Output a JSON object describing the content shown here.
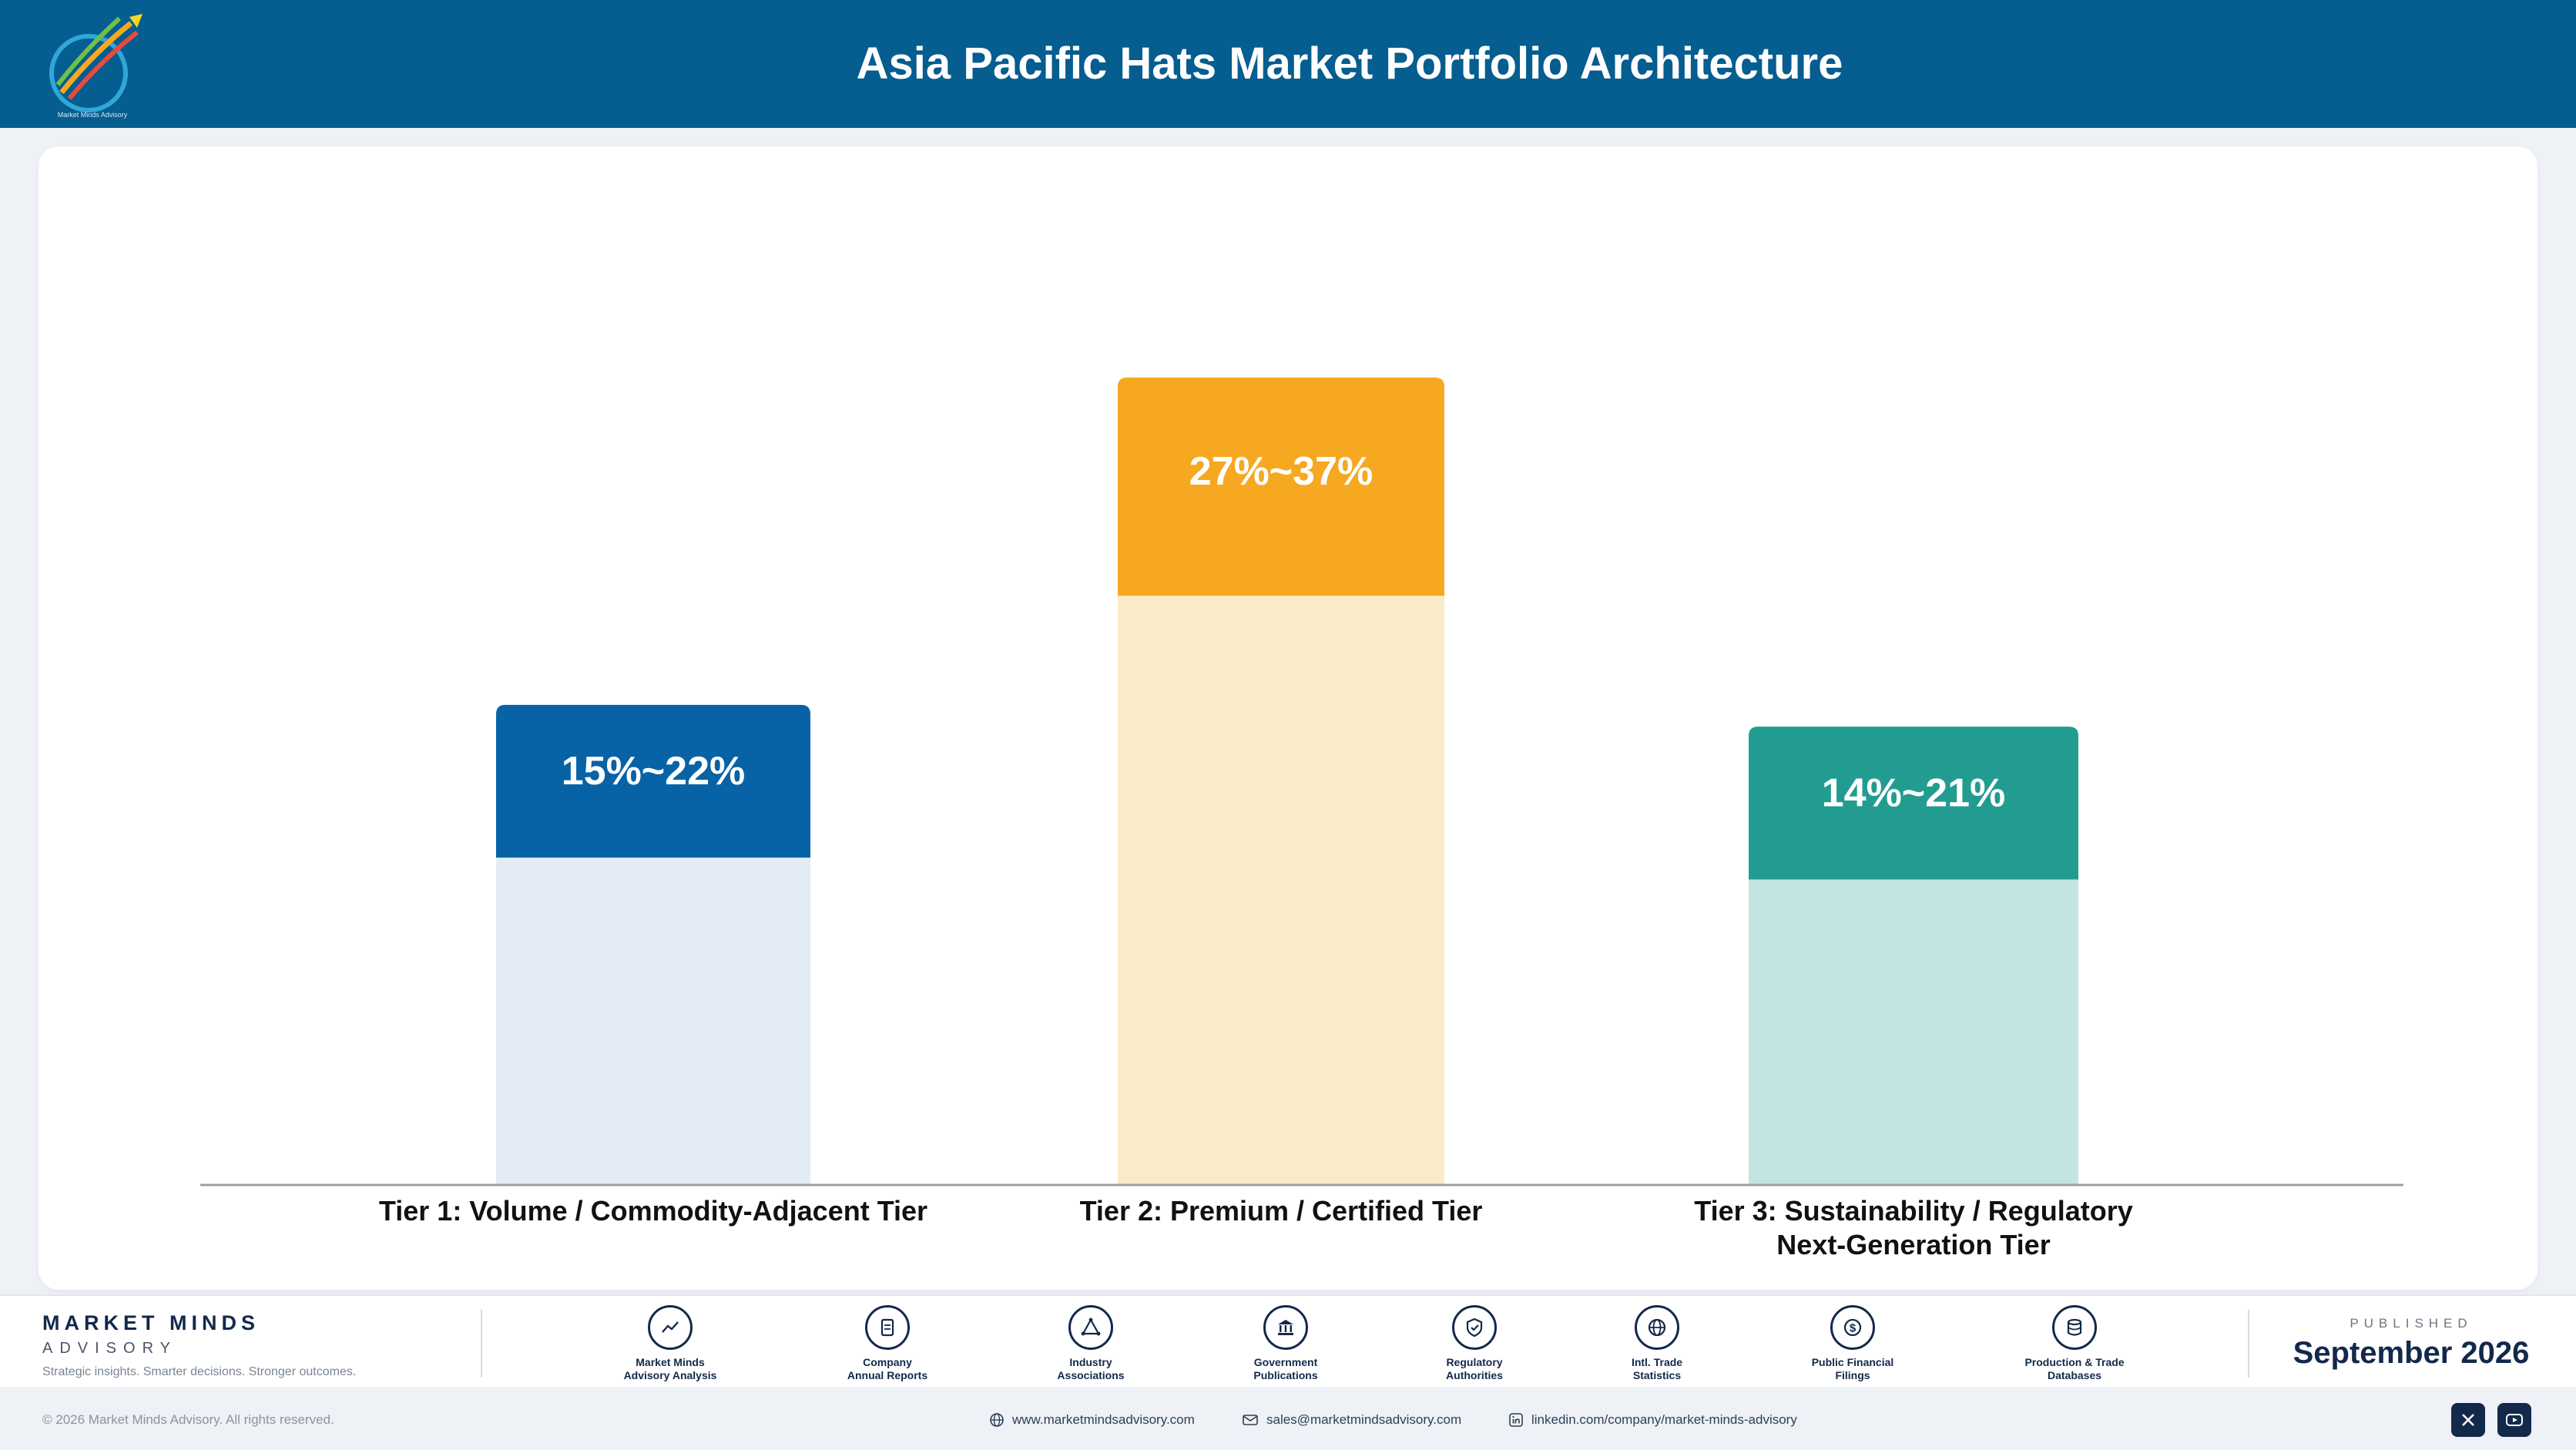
{
  "header": {
    "title": "Asia Pacific Hats Market Portfolio Architecture",
    "logo_icon": "market-minds-logo"
  },
  "chart_data": {
    "type": "bar",
    "title": "Asia Pacific Hats Market Portfolio Architecture",
    "categories": [
      "Tier 1: Volume / Commodity-Adjacent Tier",
      "Tier 2: Premium / Certified Tier",
      "Tier 3: Sustainability / Regulatory Next-Generation Tier"
    ],
    "category_lines": [
      [
        "Tier 1: Volume / Commodity-Adjacent Tier"
      ],
      [
        "Tier 2: Premium / Certified Tier"
      ],
      [
        "Tier 3: Sustainability / Regulatory",
        "Next-Generation Tier"
      ]
    ],
    "range_low": [
      15,
      27,
      14
    ],
    "range_high": [
      22,
      37,
      21
    ],
    "labels": [
      "15%~22%",
      "27%~37%",
      "14%~21%"
    ],
    "colors": [
      "#0863a6",
      "#f6a821",
      "#229c90"
    ],
    "light_colors": [
      "#e3ecf5",
      "#f9ebc8",
      "#c3e5e2"
    ],
    "ylim": [
      0,
      40
    ]
  },
  "footer": {
    "brand_name": "MARKET MINDS",
    "brand_sub": "ADVISORY",
    "brand_tagline": "Strategic insights. Smarter decisions. Stronger outcomes.",
    "sources": [
      {
        "line1": "Market Minds",
        "line2": "Advisory Analysis",
        "icon": "trend-chart-icon"
      },
      {
        "line1": "Company",
        "line2": "Annual Reports",
        "icon": "document-icon"
      },
      {
        "line1": "Industry",
        "line2": "Associations",
        "icon": "network-icon"
      },
      {
        "line1": "Government",
        "line2": "Publications",
        "icon": "government-building-icon"
      },
      {
        "line1": "Regulatory",
        "line2": "Authorities",
        "icon": "shield-check-icon"
      },
      {
        "line1": "Intl. Trade",
        "line2": "Statistics",
        "icon": "globe-icon"
      },
      {
        "line1": "Public Financial",
        "line2": "Filings",
        "icon": "dollar-coin-icon"
      },
      {
        "line1": "Production & Trade",
        "line2": "Databases",
        "icon": "database-icon"
      }
    ],
    "published_label": "PUBLISHED",
    "published_date": "September 2026"
  },
  "bottom_bar": {
    "copyright": "© 2026 Market Minds Advisory. All rights reserved.",
    "website": "www.marketmindsadvisory.com",
    "email": "sales@marketmindsadvisory.com",
    "linkedin": "linkedin.com/company/market-minds-advisory",
    "social_icons": [
      "x-icon",
      "youtube-icon"
    ]
  }
}
